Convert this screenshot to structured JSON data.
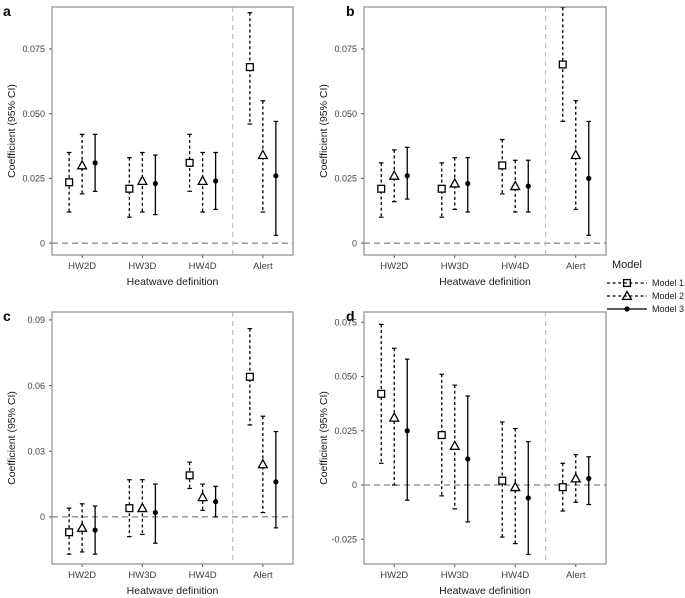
{
  "figure": {
    "xlabel": "Heatwave definition",
    "ylabel": "Coefficient (95% CI)"
  },
  "legend": {
    "title": "Model",
    "entries": [
      {
        "label": "Model 1",
        "marker": "open-square",
        "line": "dashed"
      },
      {
        "label": "Model 2",
        "marker": "open-triangle",
        "line": "dashed"
      },
      {
        "label": "Model 3",
        "marker": "filled-circle",
        "line": "solid"
      }
    ]
  },
  "colors": {
    "series": "#000000",
    "panel_border": "#8c8c8c",
    "zero_line": "#666666",
    "separator_line": "#c2c2c2",
    "title_text": "#1a1a1a",
    "tick_text": "#404040"
  },
  "chart_data": [
    {
      "type": "pointrange",
      "panel_label": "a",
      "xlabel": "Heatwave definition",
      "ylabel": "Coefficient (95% CI)",
      "categories": [
        "HW2D",
        "HW3D",
        "HW4D",
        "Alert"
      ],
      "ytick_values": [
        0,
        0.025,
        0.05,
        0.075
      ],
      "ytick_labels": [
        "0",
        "0.025",
        "0.050",
        "0.075"
      ],
      "ylim": [
        -0.0046,
        0.0912
      ],
      "zero_line": 0,
      "separator_before": "Alert",
      "series": [
        {
          "name": "Model 1",
          "marker": "open-square",
          "line": "dashed",
          "est": [
            0.0235,
            0.021,
            0.031,
            0.068
          ],
          "lo": [
            0.012,
            0.01,
            0.02,
            0.046
          ],
          "hi": [
            0.035,
            0.033,
            0.042,
            0.089
          ]
        },
        {
          "name": "Model 2",
          "marker": "open-triangle",
          "line": "dashed",
          "est": [
            0.03,
            0.024,
            0.024,
            0.034
          ],
          "lo": [
            0.019,
            0.012,
            0.012,
            0.012
          ],
          "hi": [
            0.042,
            0.035,
            0.035,
            0.055
          ]
        },
        {
          "name": "Model 3",
          "marker": "filled-circle",
          "line": "solid",
          "est": [
            0.031,
            0.023,
            0.024,
            0.026
          ],
          "lo": [
            0.02,
            0.011,
            0.013,
            0.003
          ],
          "hi": [
            0.042,
            0.034,
            0.035,
            0.047
          ]
        }
      ]
    },
    {
      "type": "pointrange",
      "panel_label": "b",
      "xlabel": "Heatwave definition",
      "ylabel": "Coefficient (95% CI)",
      "categories": [
        "HW2D",
        "HW3D",
        "HW4D",
        "Alert"
      ],
      "ytick_values": [
        0,
        0.025,
        0.05,
        0.075
      ],
      "ytick_labels": [
        "0",
        "0.025",
        "0.050",
        "0.075"
      ],
      "ylim": [
        -0.0046,
        0.0912
      ],
      "zero_line": 0,
      "separator_before": "Alert",
      "series": [
        {
          "name": "Model 1",
          "marker": "open-square",
          "line": "dashed",
          "est": [
            0.021,
            0.021,
            0.03,
            0.069
          ],
          "lo": [
            0.01,
            0.01,
            0.019,
            0.047
          ],
          "hi": [
            0.031,
            0.031,
            0.04,
            0.091
          ]
        },
        {
          "name": "Model 2",
          "marker": "open-triangle",
          "line": "dashed",
          "est": [
            0.026,
            0.023,
            0.022,
            0.034
          ],
          "lo": [
            0.016,
            0.013,
            0.012,
            0.013
          ],
          "hi": [
            0.036,
            0.033,
            0.032,
            0.055
          ]
        },
        {
          "name": "Model 3",
          "marker": "filled-circle",
          "line": "solid",
          "est": [
            0.026,
            0.023,
            0.022,
            0.025
          ],
          "lo": [
            0.017,
            0.012,
            0.012,
            0.003
          ],
          "hi": [
            0.037,
            0.033,
            0.032,
            0.047
          ]
        }
      ]
    },
    {
      "type": "pointrange",
      "panel_label": "c",
      "xlabel": "Heatwave definition",
      "ylabel": "Coefficient (95% CI)",
      "categories": [
        "HW2D",
        "HW3D",
        "HW4D",
        "Alert"
      ],
      "ytick_values": [
        0,
        0.03,
        0.06,
        0.09
      ],
      "ytick_labels": [
        "0",
        "0.03",
        "0.06",
        "0.09"
      ],
      "ylim": [
        -0.0215,
        0.0936
      ],
      "zero_line": 0,
      "separator_before": "Alert",
      "series": [
        {
          "name": "Model 1",
          "marker": "open-square",
          "line": "dashed",
          "est": [
            -0.007,
            0.004,
            0.019,
            0.064
          ],
          "lo": [
            -0.017,
            -0.009,
            0.013,
            0.042
          ],
          "hi": [
            0.004,
            0.017,
            0.025,
            0.086
          ]
        },
        {
          "name": "Model 2",
          "marker": "open-triangle",
          "line": "dashed",
          "est": [
            -0.005,
            0.004,
            0.009,
            0.024
          ],
          "lo": [
            -0.016,
            -0.008,
            0.003,
            0.002
          ],
          "hi": [
            0.006,
            0.017,
            0.015,
            0.046
          ]
        },
        {
          "name": "Model 3",
          "marker": "filled-circle",
          "line": "solid",
          "est": [
            -0.006,
            0.002,
            0.007,
            0.016
          ],
          "lo": [
            -0.017,
            -0.012,
            0.0,
            -0.005
          ],
          "hi": [
            0.005,
            0.015,
            0.014,
            0.039
          ]
        }
      ]
    },
    {
      "type": "pointrange",
      "panel_label": "d",
      "xlabel": "Heatwave definition",
      "ylabel": "Coefficient (95% CI)",
      "categories": [
        "HW2D",
        "HW3D",
        "HW4D",
        "Alert"
      ],
      "ytick_values": [
        -0.025,
        0,
        0.025,
        0.05,
        0.075
      ],
      "ytick_labels": [
        "-0.025",
        "0",
        "0.025",
        "0.050",
        "0.075"
      ],
      "ylim": [
        -0.0364,
        0.0797
      ],
      "zero_line": 0,
      "separator_before": "Alert",
      "series": [
        {
          "name": "Model 1",
          "marker": "open-square",
          "line": "dashed",
          "est": [
            0.042,
            0.023,
            0.002,
            -0.001
          ],
          "lo": [
            0.01,
            -0.005,
            -0.024,
            -0.012
          ],
          "hi": [
            0.074,
            0.051,
            0.029,
            0.01
          ]
        },
        {
          "name": "Model 2",
          "marker": "open-triangle",
          "line": "dashed",
          "est": [
            0.031,
            0.018,
            -0.001,
            0.003
          ],
          "lo": [
            0.0,
            -0.011,
            -0.027,
            -0.008
          ],
          "hi": [
            0.063,
            0.046,
            0.026,
            0.014
          ]
        },
        {
          "name": "Model 3",
          "marker": "filled-circle",
          "line": "solid",
          "est": [
            0.025,
            0.012,
            -0.006,
            0.003
          ],
          "lo": [
            -0.007,
            -0.017,
            -0.032,
            -0.009
          ],
          "hi": [
            0.058,
            0.041,
            0.02,
            0.013
          ]
        }
      ]
    }
  ]
}
